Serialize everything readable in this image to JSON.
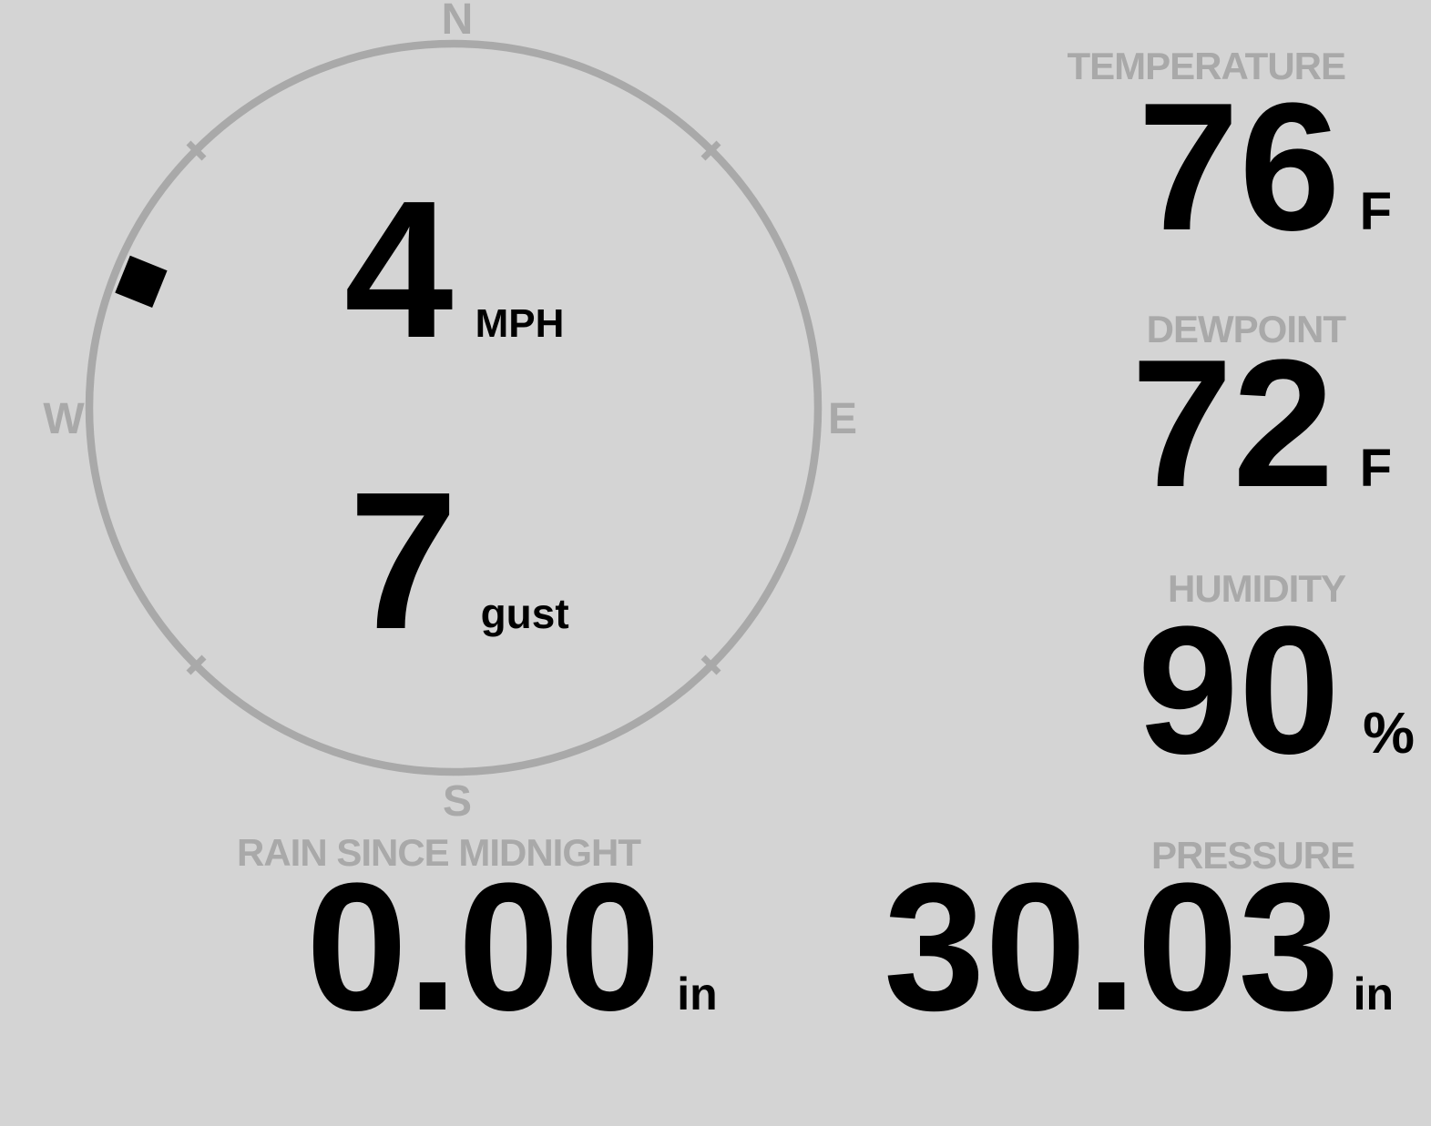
{
  "compass": {
    "north": "N",
    "east": "E",
    "south": "S",
    "west": "W",
    "wind": {
      "speed": "4",
      "speed_unit": "MPH",
      "gust": "7",
      "gust_label": "gust",
      "direction_deg": 292
    }
  },
  "metrics": {
    "temperature": {
      "label": "TEMPERATURE",
      "value": "76",
      "unit": "F"
    },
    "dewpoint": {
      "label": "DEWPOINT",
      "value": "72",
      "unit": "F"
    },
    "humidity": {
      "label": "HUMIDITY",
      "value": "90",
      "unit": "%"
    },
    "rain_since_midnight": {
      "label": "RAIN SINCE MIDNIGHT",
      "value": "0.00",
      "unit": "in"
    },
    "pressure": {
      "label": "PRESSURE",
      "value": "30.03",
      "unit": "in"
    }
  },
  "colors": {
    "background": "#d4d4d4",
    "muted": "#a9a9a9",
    "value_text": "#000000"
  }
}
